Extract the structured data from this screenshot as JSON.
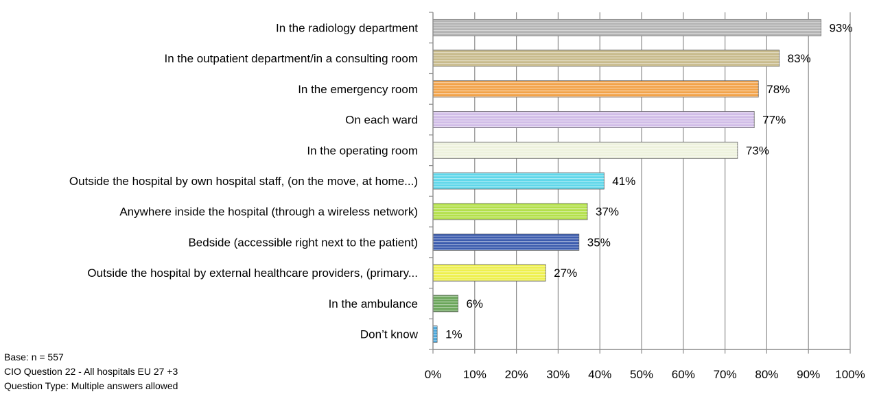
{
  "chart_data": {
    "type": "bar",
    "orientation": "horizontal",
    "categories": [
      "In the radiology department",
      "In the outpatient department/in a consulting room",
      "In the emergency room",
      "On each ward",
      "In the operating room",
      "Outside the hospital by own hospital staff, (on the move, at home...)",
      "Anywhere inside the hospital (through a wireless network)",
      "Bedside (accessible right next to the patient)",
      "Outside the hospital by external healthcare providers, (primary...",
      "In the ambulance",
      "Don’t know"
    ],
    "values": [
      93,
      83,
      78,
      77,
      73,
      41,
      37,
      35,
      27,
      6,
      1
    ],
    "value_labels": [
      "93%",
      "83%",
      "78%",
      "77%",
      "73%",
      "41%",
      "37%",
      "35%",
      "27%",
      "6%",
      "1%"
    ],
    "colors": [
      "#b4b4b4",
      "#c8bb8c",
      "#f2a34a",
      "#d1bde8",
      "#eef2dd",
      "#5fd7ea",
      "#b3e04a",
      "#3c5cae",
      "#eef04e",
      "#6aa55a",
      "#4aa8dc"
    ],
    "xlim": [
      0,
      100
    ],
    "xticks": [
      "0%",
      "10%",
      "20%",
      "30%",
      "40%",
      "50%",
      "60%",
      "70%",
      "80%",
      "90%",
      "100%"
    ],
    "grid": true,
    "legend": "none"
  },
  "notes": {
    "base": "Base: n = 557",
    "question": "CIO Question 22 - All hospitals EU 27 +3",
    "type": "Question Type: Multiple answers allowed"
  }
}
